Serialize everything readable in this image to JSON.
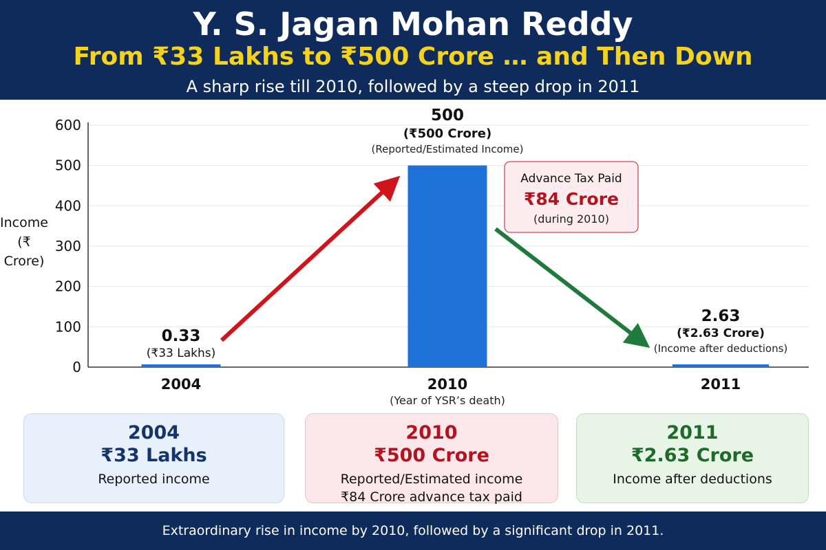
{
  "header": {
    "title": "Y. S. Jagan Mohan Reddy",
    "subtitle": "From ₹33 Lakhs to ₹500 Crore … and Then Down",
    "tagline": "A sharp rise till 2010, followed by a steep drop in 2011"
  },
  "colors": {
    "header_bg": "#0f2b5c",
    "yellow": "#f5d21c",
    "bar": "#1e73d8",
    "red_arrow": "#d0141c",
    "green_arrow": "#1f7a3c"
  },
  "chart_data": {
    "type": "bar",
    "categories": [
      "2004",
      "2010",
      "2011"
    ],
    "values": [
      0.33,
      500,
      2.63
    ],
    "ylabel_line1": "Income",
    "ylabel_line2": "(₹ Crore)",
    "ylim": [
      0,
      600
    ],
    "yticks": [
      0,
      100,
      200,
      300,
      400,
      500,
      600
    ],
    "grid": true,
    "category_notes": [
      "",
      "(Year of YSR’s death)",
      ""
    ],
    "data_labels": [
      {
        "value": "0.33",
        "detail": "(₹33 Lakhs)",
        "note": ""
      },
      {
        "value": "500",
        "detail": "(₹500 Crore)",
        "note": "(Reported/Estimated Income)"
      },
      {
        "value": "2.63",
        "detail": "(₹2.63 Crore)",
        "note": "(Income after deductions)"
      }
    ],
    "callout": {
      "title": "Advance Tax Paid",
      "amount": "₹84 Crore",
      "note": "(during 2010)"
    },
    "arrows": [
      {
        "from": "2004",
        "to": "2010",
        "direction": "up",
        "color": "red"
      },
      {
        "from": "2010",
        "to": "2011",
        "direction": "down",
        "color": "green"
      }
    ]
  },
  "cards": [
    {
      "year": "2004",
      "amount": "₹33 Lakhs",
      "desc": [
        "Reported income"
      ]
    },
    {
      "year": "2010",
      "amount": "₹500 Crore",
      "desc": [
        "Reported/Estimated income",
        "₹84 Crore advance tax paid"
      ]
    },
    {
      "year": "2011",
      "amount": "₹2.63 Crore",
      "desc": [
        "Income after deductions"
      ]
    }
  ],
  "footer": {
    "text": "Extraordinary rise in income by 2010, followed by a significant drop in 2011."
  }
}
